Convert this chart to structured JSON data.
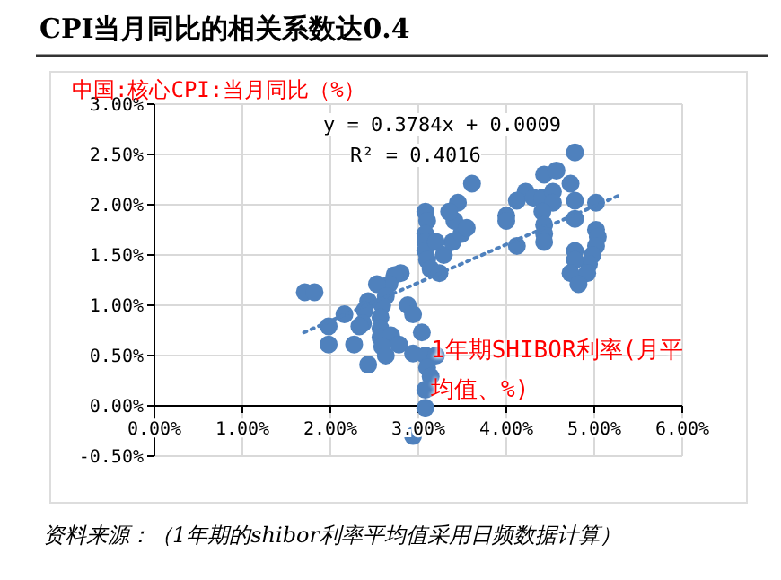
{
  "chart_data": {
    "type": "scatter",
    "title": "CPI当月同比的相关系数达0.4",
    "ylabel": "中国:核心CPI:当月同比（%）",
    "xlabel": "1年期SHIBOR利率(月平均值、%)",
    "annotations": [
      "y = 0.3784x + 0.0009",
      "R² = 0.4016",
      "资料来源：（1年期的shibor利率平均值采用日频数据计算）"
    ],
    "xlim": [
      0,
      6
    ],
    "ylim": [
      -0.5,
      3
    ],
    "xticks": [
      {
        "value": 0,
        "label": "0.00%"
      },
      {
        "value": 1,
        "label": "1.00%"
      },
      {
        "value": 2,
        "label": "2.00%"
      },
      {
        "value": 3,
        "label": "3.00%"
      },
      {
        "value": 4,
        "label": "4.00%"
      },
      {
        "value": 5,
        "label": "5.00%"
      },
      {
        "value": 6,
        "label": "6.00%"
      }
    ],
    "yticks": [
      {
        "value": -0.5,
        "label": "-0.50%"
      },
      {
        "value": 0,
        "label": "0.00%"
      },
      {
        "value": 0.5,
        "label": "0.50%"
      },
      {
        "value": 1,
        "label": "1.00%"
      },
      {
        "value": 1.5,
        "label": "1.50%"
      },
      {
        "value": 2,
        "label": "2.00%"
      },
      {
        "value": 2.5,
        "label": "2.50%"
      },
      {
        "value": 3,
        "label": "3.00%"
      }
    ],
    "grid": true,
    "marker": "circle",
    "series": [
      {
        "color": "#4f81bd",
        "x": [
          1.71,
          1.82,
          3.61,
          3.45,
          3.08,
          3.1,
          3.08,
          3.08,
          3.08,
          3.1,
          3.14,
          3.24,
          3.29,
          3.39,
          3.49,
          3.41,
          3.35,
          3.2,
          2.8,
          2.73,
          2.67,
          2.53,
          2.63,
          2.59,
          2.43,
          2.39,
          2.37,
          2.16,
          1.98,
          2.33,
          2.88,
          2.94,
          2.57,
          2.57,
          2.57,
          2.69,
          2.59,
          2.78,
          1.98,
          2.27,
          2.63,
          2.43,
          3.04,
          2.94,
          3.08,
          3.2,
          3.1,
          3.14,
          3.08,
          3.08,
          2.94,
          4.78,
          4.43,
          4.57,
          4.73,
          4.22,
          4.12,
          4.31,
          4.41,
          4.53,
          4.53,
          4.78,
          5.02,
          4.0,
          4.0,
          4.41,
          4.43,
          4.78,
          4.43,
          4.43,
          4.12,
          5.02,
          5.04,
          5.02,
          4.78,
          4.98,
          4.94,
          4.78,
          4.73,
          4.92,
          4.82,
          3.55
        ],
        "values": [
          1.13,
          1.13,
          2.21,
          2.02,
          1.93,
          1.84,
          1.71,
          1.63,
          1.54,
          1.45,
          1.36,
          1.32,
          1.5,
          1.63,
          1.71,
          1.84,
          1.93,
          1.63,
          1.32,
          1.3,
          1.21,
          1.21,
          1.09,
          1.0,
          1.04,
          0.95,
          0.82,
          0.91,
          0.79,
          0.79,
          1.0,
          0.91,
          0.88,
          0.77,
          0.68,
          0.7,
          0.59,
          0.61,
          0.61,
          0.61,
          0.5,
          0.41,
          0.73,
          0.52,
          0.5,
          0.5,
          0.38,
          0.29,
          0.16,
          -0.02,
          -0.3,
          2.52,
          2.3,
          2.34,
          2.21,
          2.13,
          2.04,
          2.07,
          2.07,
          2.13,
          2.02,
          2.04,
          2.02,
          1.89,
          1.84,
          1.93,
          1.8,
          1.86,
          1.71,
          1.63,
          1.59,
          1.75,
          1.68,
          1.59,
          1.54,
          1.5,
          1.41,
          1.45,
          1.32,
          1.32,
          1.21,
          1.77
        ]
      },
      {
        "type": "line",
        "color": "#4f81bd",
        "line_style": "dotted",
        "marker": "none",
        "x": [
          1.7,
          5.3
        ],
        "values": [
          0.73,
          2.1
        ]
      }
    ]
  }
}
